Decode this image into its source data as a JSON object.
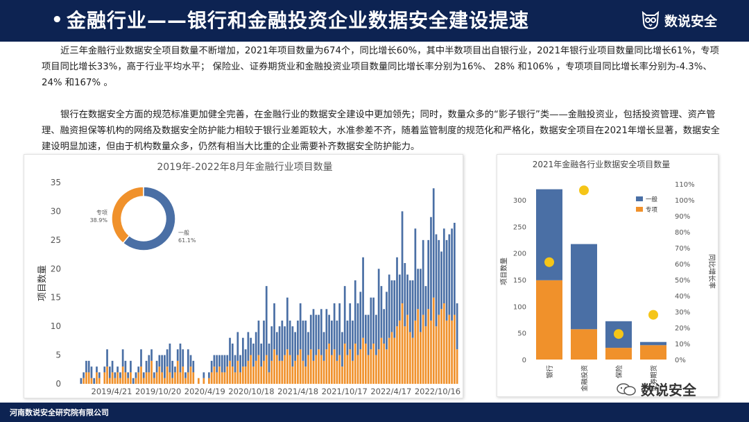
{
  "header": {
    "bullet": "•",
    "title": "金融行业——银行和金融投资企业数据安全建设提速",
    "brand": "数说安全"
  },
  "paragraphs": [
    "近三年金融行业数据安全项目数量不断增加，2021年项目数量为674个，同比增长60%，其中半数项目出自银行业，2021年银行业项目数量同比增长61%，专项项目同比增长33%，高于行业平均水平；  保险业、证券期货业和金融投资业项目数量同比增长率分别为16%、 28% 和106% ，专项项目同比增长率分别为-4.3%、 24% 和167% 。",
    "银行在数据安全方面的规范标准更加健全完善，在金融行业的数据安全建设中更加领先；同时，数量众多的“影子银行”类——金融投资业，包括投资管理、资产管理、融资担保等机构的网络及数据安全防护能力相较于银行业差距较大，水准参差不齐，随着监管制度的规范化和严格化，数据安全项目在2021年增长显著，数据安全建设明显加速，但由于机构数量众多，仍然有相当大比重的企业需要补齐数据安全防护能力。"
  ],
  "footer": {
    "org": "河南数说安全研究院有限公司"
  },
  "watermark": {
    "text": "数说安全"
  },
  "colors": {
    "navy": "#0d2352",
    "blue": "#4a6fa5",
    "orange": "#f0912b",
    "yellow": "#f5c518"
  },
  "chart_data": [
    {
      "type": "bar",
      "stacked": true,
      "title": "2019年-2022年8月年金融行业项目数量",
      "ylabel": "项目数量",
      "ylim": [
        0,
        35
      ],
      "yticks": [
        0,
        5,
        10,
        15,
        20,
        25,
        30,
        35
      ],
      "xticks": [
        "2019/4/21",
        "2019/10/20",
        "2020/4/19",
        "2020/10/18",
        "2021/4/18",
        "2021/10/17",
        "2022/4/17",
        "2022/10/16"
      ],
      "series": [
        {
          "name": "专项",
          "color": "#f0912b",
          "values": [
            0,
            1,
            2,
            2,
            1,
            0,
            2,
            1,
            0,
            2,
            3,
            1,
            2,
            1,
            2,
            1,
            3,
            2,
            1,
            2,
            0,
            1,
            2,
            3,
            1,
            2,
            2,
            4,
            1,
            2,
            3,
            2,
            1,
            3,
            2,
            1,
            2,
            4,
            2,
            3,
            1,
            2,
            3,
            2,
            0,
            1,
            0,
            1,
            0,
            1,
            2,
            3,
            2,
            3,
            2,
            2,
            3,
            4,
            3,
            2,
            4,
            2,
            3,
            3,
            4,
            5,
            3,
            4,
            5,
            3,
            4,
            5,
            2,
            4,
            6,
            5,
            4,
            4,
            5,
            6,
            5,
            3,
            4,
            5,
            6,
            4,
            3,
            5,
            6,
            4,
            5,
            6,
            5,
            4,
            6,
            7,
            5,
            6,
            4,
            5,
            3,
            7,
            5,
            6,
            4,
            7,
            5,
            6,
            8,
            7,
            5,
            6,
            7,
            5,
            6,
            8,
            7,
            6,
            8,
            9,
            8,
            10,
            11,
            14,
            10,
            12,
            9,
            8,
            11,
            13,
            9,
            12,
            10,
            13,
            11,
            15,
            10,
            12,
            13,
            14,
            11,
            12,
            11,
            12,
            6
          ]
        },
        {
          "name": "一般",
          "color": "#4a6fa5",
          "values": [
            1,
            1,
            2,
            2,
            2,
            1,
            1,
            1,
            0,
            1,
            3,
            2,
            2,
            1,
            1,
            1,
            3,
            2,
            1,
            2,
            1,
            1,
            1,
            3,
            1,
            2,
            3,
            2,
            1,
            2,
            2,
            3,
            4,
            3,
            5,
            3,
            1,
            2,
            5,
            3,
            1,
            4,
            2,
            2,
            0,
            0,
            0,
            1,
            0,
            1,
            2,
            2,
            3,
            2,
            3,
            3,
            2,
            4,
            4,
            3,
            5,
            3,
            5,
            3,
            5,
            3,
            4,
            5,
            6,
            4,
            7,
            12,
            5,
            6,
            8,
            4,
            6,
            7,
            5,
            9,
            6,
            7,
            5,
            6,
            8,
            7,
            8,
            4,
            6,
            9,
            7,
            6,
            8,
            5,
            7,
            5,
            6,
            8,
            7,
            9,
            6,
            10,
            6,
            8,
            7,
            11,
            9,
            10,
            14,
            5,
            7,
            9,
            8,
            7,
            14,
            9,
            6,
            10,
            11,
            9,
            10,
            12,
            8,
            16,
            11,
            7,
            9,
            10,
            16,
            7,
            11,
            13,
            7,
            12,
            18,
            19,
            16,
            13,
            10,
            13,
            14,
            14,
            16,
            16,
            8
          ]
        }
      ],
      "inset_pie": {
        "type": "pie",
        "labels": [
          "一般",
          "专项"
        ],
        "values": [
          61.1,
          38.9
        ],
        "value_labels": [
          "61.1%",
          "38.9%"
        ],
        "colors": [
          "#4a6fa5",
          "#f0912b"
        ]
      }
    },
    {
      "type": "bar",
      "stacked": true,
      "title": "2021年金融各行业数据安全项目数量",
      "ylabel": "项目数量",
      "y2label": "同比增长率",
      "ylim": [
        0,
        330
      ],
      "yticks": [
        0,
        50,
        100,
        150,
        200,
        250,
        300
      ],
      "y2ticks": [
        "0%",
        "10%",
        "20%",
        "30%",
        "40%",
        "50%",
        "60%",
        "70%",
        "80%",
        "90%",
        "100%",
        "110%"
      ],
      "categories": [
        "银行",
        "金融投资",
        "保险",
        "证券期货"
      ],
      "series": [
        {
          "name": "专项",
          "color": "#f0912b",
          "values": [
            149,
            57,
            22,
            27
          ]
        },
        {
          "name": "一般",
          "color": "#4a6fa5",
          "values": [
            171,
            160,
            50,
            6
          ]
        }
      ],
      "growth_rate": [
        61,
        106,
        16,
        28
      ],
      "growth_color": "#f5c518",
      "legend": [
        "一般",
        "专项"
      ]
    }
  ]
}
